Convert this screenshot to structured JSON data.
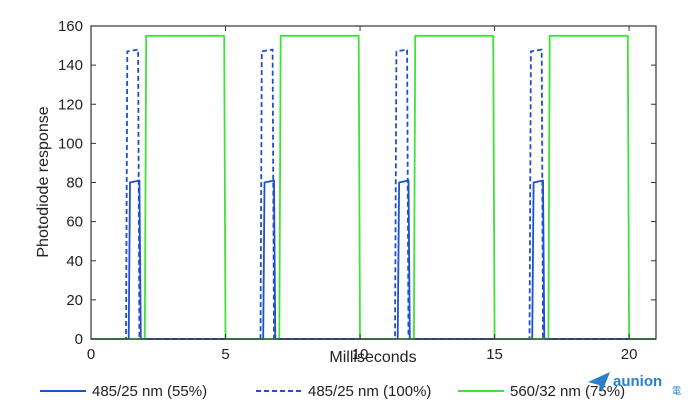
{
  "chart_data": {
    "type": "line",
    "xlabel": "Milliseconds",
    "ylabel": "Photodiode response",
    "xlim": [
      0,
      21
    ],
    "ylim": [
      0,
      160
    ],
    "x_ticks": [
      "0",
      "5",
      "10",
      "15",
      "20"
    ],
    "y_ticks": [
      "0",
      "20",
      "40",
      "60",
      "80",
      "100",
      "120",
      "140",
      "160"
    ],
    "grid": false,
    "legend_position": "bottom",
    "series": [
      {
        "name": "485/25 nm (55%)",
        "color": "#1f4fd1",
        "style": "solid",
        "points": [
          [
            0,
            0
          ],
          [
            1.4,
            0
          ],
          [
            1.45,
            80
          ],
          [
            1.8,
            81
          ],
          [
            1.85,
            0
          ],
          [
            6.4,
            0
          ],
          [
            6.45,
            80
          ],
          [
            6.8,
            81
          ],
          [
            6.85,
            0
          ],
          [
            11.4,
            0
          ],
          [
            11.45,
            80
          ],
          [
            11.8,
            81
          ],
          [
            11.85,
            0
          ],
          [
            16.4,
            0
          ],
          [
            16.45,
            80
          ],
          [
            16.8,
            81
          ],
          [
            16.85,
            0
          ],
          [
            21,
            0
          ]
        ]
      },
      {
        "name": "485/25 nm  (100%)",
        "color": "#1f4fd1",
        "style": "dashed",
        "points": [
          [
            0,
            0
          ],
          [
            1.3,
            0
          ],
          [
            1.35,
            147
          ],
          [
            1.75,
            148
          ],
          [
            1.8,
            0
          ],
          [
            6.3,
            0
          ],
          [
            6.35,
            147
          ],
          [
            6.75,
            148
          ],
          [
            6.8,
            0
          ],
          [
            11.3,
            0
          ],
          [
            11.35,
            147
          ],
          [
            11.75,
            148
          ],
          [
            11.8,
            0
          ],
          [
            16.3,
            0
          ],
          [
            16.35,
            147
          ],
          [
            16.75,
            148
          ],
          [
            16.8,
            0
          ],
          [
            21,
            0
          ]
        ]
      },
      {
        "name": "560/32 nm (75%)",
        "color": "#3ee23a",
        "style": "solid",
        "points": [
          [
            0,
            0
          ],
          [
            2.0,
            0
          ],
          [
            2.05,
            155
          ],
          [
            4.95,
            155
          ],
          [
            5.0,
            0
          ],
          [
            7.0,
            0
          ],
          [
            7.05,
            155
          ],
          [
            9.95,
            155
          ],
          [
            10.0,
            0
          ],
          [
            12.0,
            0
          ],
          [
            12.05,
            155
          ],
          [
            14.95,
            155
          ],
          [
            15.0,
            0
          ],
          [
            17.0,
            0
          ],
          [
            17.05,
            155
          ],
          [
            19.95,
            155
          ],
          [
            20.0,
            0
          ],
          [
            21,
            0
          ]
        ]
      }
    ]
  },
  "watermark": {
    "text": "aunion",
    "subtext": "電"
  }
}
